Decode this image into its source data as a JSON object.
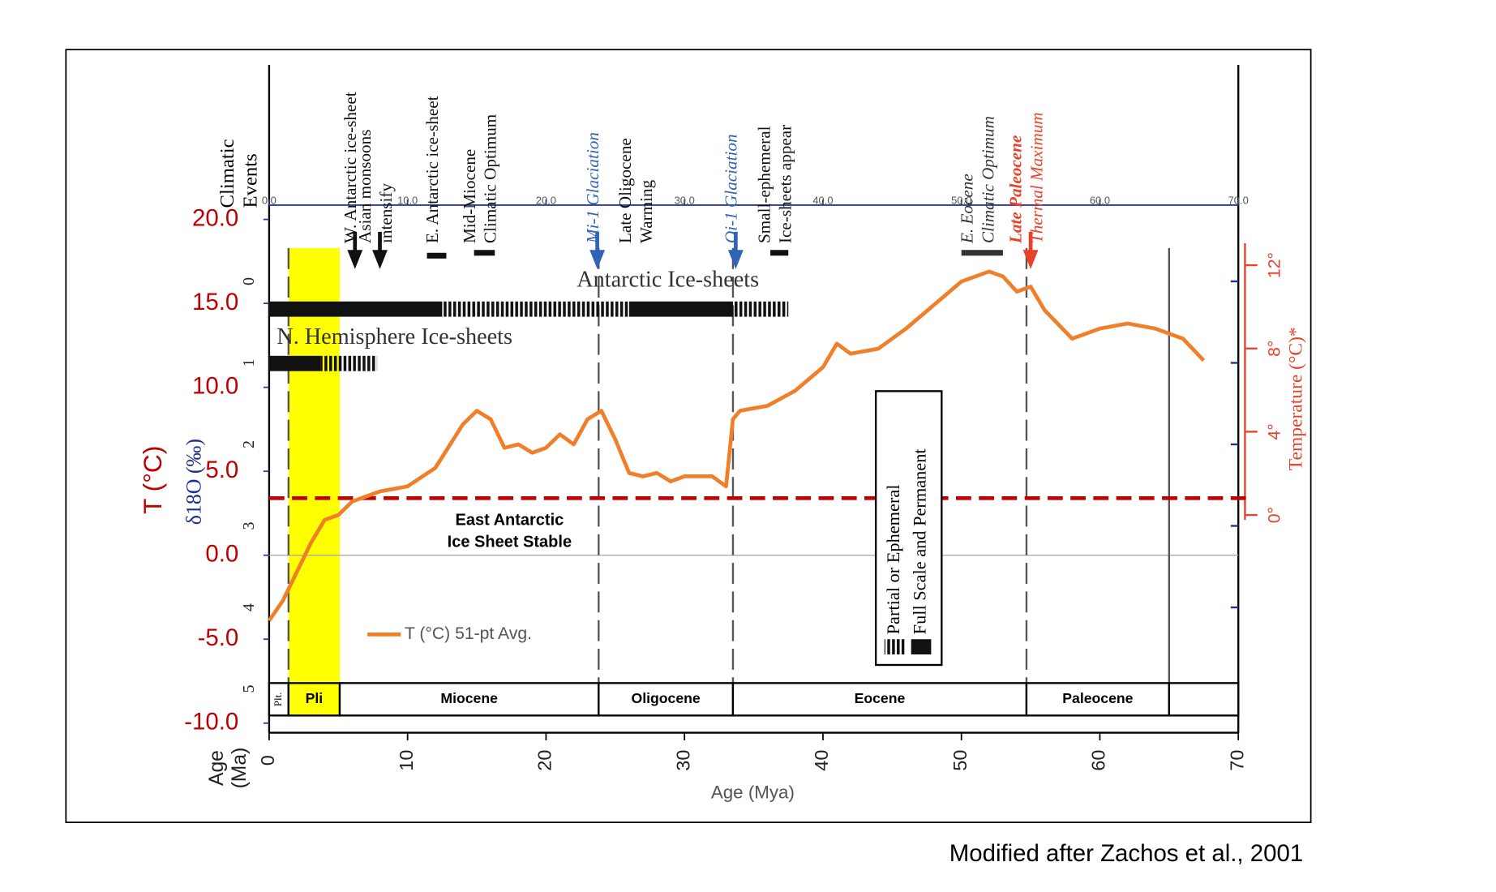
{
  "chart_data": {
    "type": "line",
    "x_label": "Age (Mya)",
    "x_label_alt": [
      "Age",
      "(Ma)"
    ],
    "y_label": "T (°C)",
    "xlim": [
      0,
      70
    ],
    "xticks": [
      0,
      10,
      20,
      30,
      40,
      50,
      60,
      70
    ],
    "top_xticks": [
      {
        "value": 0,
        "label": "0.0"
      },
      {
        "value": 10,
        "label": "10.0"
      },
      {
        "value": 20,
        "label": "20.0"
      },
      {
        "value": 30,
        "label": "30.0"
      },
      {
        "value": 40,
        "label": "40.0"
      },
      {
        "value": 50,
        "label": "50.0"
      },
      {
        "value": 60,
        "label": "60.0"
      },
      {
        "value": 70,
        "label": "70.0"
      }
    ],
    "ylim": [
      -10,
      20
    ],
    "yticks": [
      {
        "value": -10,
        "label": "-10.0"
      },
      {
        "value": -5,
        "label": "-5.0"
      },
      {
        "value": 0,
        "label": "0.0"
      },
      {
        "value": 5,
        "label": "5.0"
      },
      {
        "value": 10,
        "label": "10.0"
      },
      {
        "value": 15,
        "label": "15.0"
      },
      {
        "value": 20,
        "label": "20.0"
      }
    ],
    "baseline": 0,
    "series": [
      {
        "name": "T (°C) 51-pt Avg.",
        "color": "#f07f2a",
        "x": [
          0,
          1,
          2,
          3,
          4,
          5,
          6,
          7,
          8,
          10,
          12,
          14,
          15,
          16,
          17,
          18,
          19,
          20,
          21,
          22,
          23,
          24,
          25,
          26,
          27,
          28,
          29,
          30,
          31,
          32,
          33,
          33.5,
          34,
          36,
          38,
          40,
          41,
          42,
          44,
          46,
          48,
          50,
          52,
          53,
          54,
          55,
          56,
          58,
          60,
          62,
          64,
          66,
          67.5
        ],
        "values": [
          -3.9,
          -2.7,
          -1.0,
          0.7,
          2.1,
          2.4,
          3.2,
          3.5,
          3.8,
          4.1,
          5.2,
          7.8,
          8.6,
          8.1,
          6.4,
          6.6,
          6.1,
          6.4,
          7.2,
          6.6,
          8.1,
          8.6,
          6.9,
          4.9,
          4.7,
          4.9,
          4.4,
          4.7,
          4.7,
          4.7,
          4.1,
          8.1,
          8.6,
          8.9,
          9.8,
          11.2,
          12.6,
          12.0,
          12.3,
          13.5,
          14.9,
          16.3,
          16.9,
          16.6,
          15.7,
          16.0,
          14.6,
          12.9,
          13.5,
          13.8,
          13.5,
          12.9,
          11.6
        ]
      }
    ],
    "d18o_axis": {
      "label": "δ18O (‰)",
      "lim": [
        5.42,
        -0.76
      ],
      "ticks": [
        0,
        1,
        2,
        3,
        4,
        5
      ],
      "color": "#1f2f8f"
    },
    "temp_axis": {
      "label": "Temperature (°C)*",
      "lim": [
        -10,
        14.2
      ],
      "ticks": [
        {
          "value": 0,
          "label": "0°"
        },
        {
          "value": 4,
          "label": "4°"
        },
        {
          "value": 8,
          "label": "8°"
        },
        {
          "value": 12,
          "label": "12°"
        }
      ],
      "color": "#e8412c"
    },
    "threshold": {
      "value": 3.4,
      "label": [
        "East Antarctic",
        "Ice Sheet Stable"
      ],
      "color": "#c00000"
    },
    "epochs": [
      {
        "name": "Plt.",
        "start": 0,
        "end": 1.4,
        "boundary": "dashed"
      },
      {
        "name": "Pli",
        "start": 1.4,
        "end": 5.1,
        "color": "#ffff00"
      },
      {
        "name": "Miocene",
        "start": 5.1,
        "end": 23.8,
        "boundary": "dashed"
      },
      {
        "name": "Oligocene",
        "start": 23.8,
        "end": 33.5,
        "boundary": "dashed"
      },
      {
        "name": "Eocene",
        "start": 33.5,
        "end": 54.7,
        "boundary": "dashed"
      },
      {
        "name": "Paleocene",
        "start": 54.7,
        "end": 65,
        "boundary": "solid"
      }
    ],
    "events_heading": [
      "Climatic",
      "Events"
    ],
    "events": [
      {
        "label": [
          "W. Antarctic ice-sheet"
        ],
        "age": 6.2,
        "marker": "arrow",
        "color": "#111111"
      },
      {
        "label": [
          "Asian monsoons",
          "intensify"
        ],
        "age": 8,
        "marker": "arrow",
        "color": "#111111"
      },
      {
        "label": [
          "E. Antarctic ice-sheet"
        ],
        "start": 11.4,
        "end": 12.8,
        "marker": "bar",
        "color": "#111111"
      },
      {
        "label": [
          "Mid-Miocene",
          "Climatic Optimum"
        ],
        "start": 14.8,
        "end": 16.3,
        "marker": "bar",
        "color": "#111111"
      },
      {
        "label": [
          "Mi-1 Glaciation"
        ],
        "age": 23.7,
        "marker": "arrow",
        "color": "#2e63b8"
      },
      {
        "label": [
          "Late Oligocene",
          "Warming"
        ],
        "age": 26.8,
        "color": "#111111"
      },
      {
        "label": [
          "Oi-1 Glaciation"
        ],
        "age": 33.7,
        "marker": "arrow",
        "color": "#2e63b8"
      },
      {
        "label": [
          "Small-ephemeral",
          "Ice-sheets appear"
        ],
        "start": 36.2,
        "end": 37.5,
        "marker": "bar",
        "color": "#111111"
      },
      {
        "label": [
          "E. Eocene",
          "Climatic Optimum"
        ],
        "start": 50,
        "end": 53,
        "marker": "bar",
        "color": "#333333"
      },
      {
        "label": [
          "Late Paleocene",
          "Thermal Maximum"
        ],
        "age": 55,
        "marker": "arrow",
        "color": "#e8412c"
      }
    ],
    "ice_sheets": [
      {
        "name": "Antarctic Ice-sheets",
        "segments": [
          {
            "start": 0,
            "end": 12.5,
            "kind": "full"
          },
          {
            "start": 12.5,
            "end": 26,
            "kind": "partial"
          },
          {
            "start": 26,
            "end": 33.5,
            "kind": "full"
          },
          {
            "start": 33.5,
            "end": 37.5,
            "kind": "partial"
          }
        ]
      },
      {
        "name": "N. Hemisphere Ice-sheets",
        "segments": [
          {
            "start": 0,
            "end": 3.7,
            "kind": "full"
          },
          {
            "start": 3.7,
            "end": 7.8,
            "kind": "partial"
          }
        ]
      }
    ],
    "ice_legend": {
      "partial": "Partial or Ephemeral",
      "full": "Full Scale and Permanent"
    }
  },
  "footer": "Modified after Zachos et al., 2001"
}
